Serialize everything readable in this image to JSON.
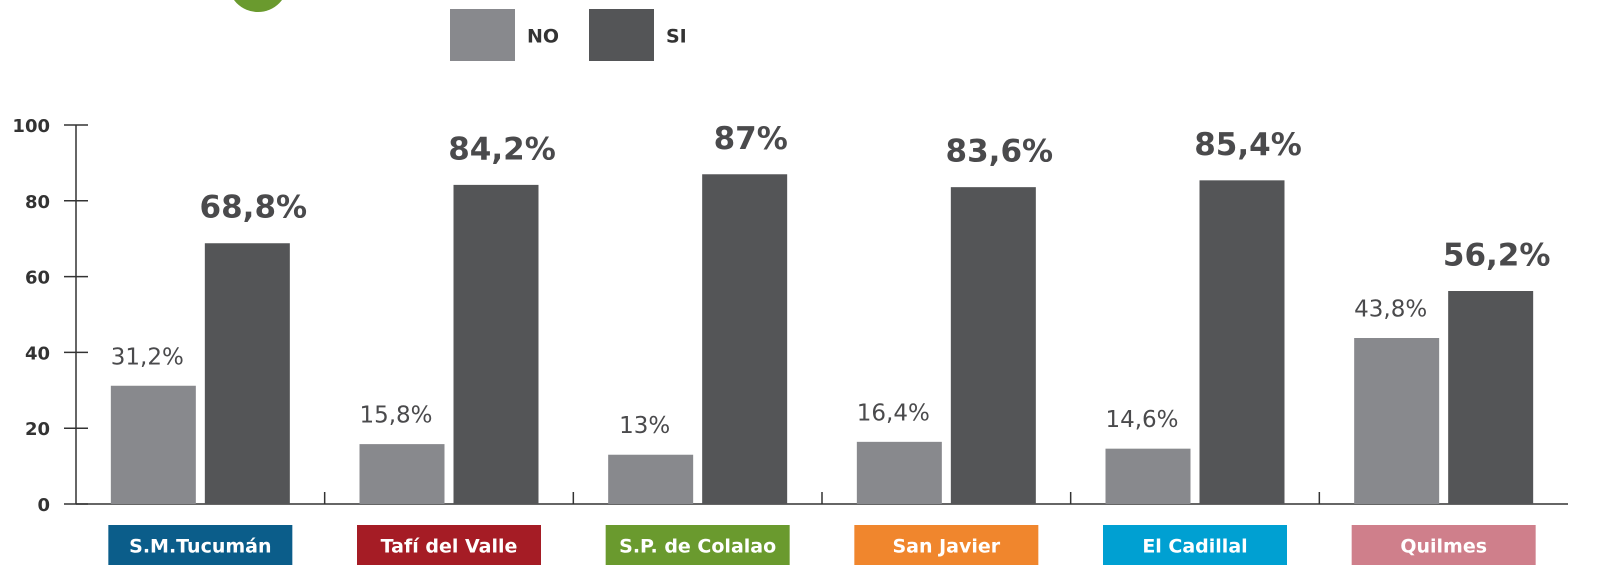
{
  "chart_data": {
    "type": "bar",
    "categories": [
      "S.M.Tucumán",
      "Tafí del Valle",
      "S.P. de Colalao",
      "San Javier",
      "El Cadillal",
      "Quilmes"
    ],
    "category_colors": [
      "#0b5d8a",
      "#a51c25",
      "#6a9a2e",
      "#f0862d",
      "#00a0d2",
      "#cf7f8b"
    ],
    "series": [
      {
        "name": "NO",
        "color": "#88898d",
        "values": [
          31.2,
          15.8,
          13,
          16.4,
          14.6,
          43.8
        ],
        "value_labels": [
          "31,2%",
          "15,8%",
          "13%",
          "16,4%",
          "14,6%",
          "43,8%"
        ]
      },
      {
        "name": "SI",
        "color": "#545557",
        "values": [
          68.8,
          84.2,
          87,
          83.6,
          85.4,
          56.2
        ],
        "value_labels": [
          "68,8%",
          "84,2%",
          "87%",
          "83,6%",
          "85,4%",
          "56,2%"
        ]
      }
    ],
    "ylim": [
      0,
      100
    ],
    "yticks": [
      0,
      20,
      40,
      60,
      80,
      100
    ]
  }
}
